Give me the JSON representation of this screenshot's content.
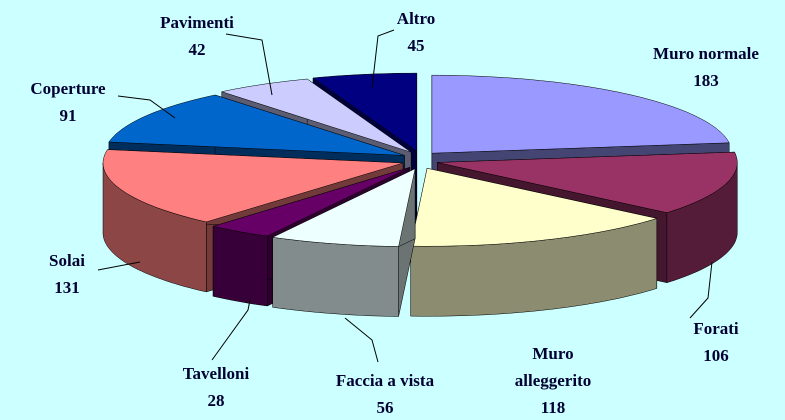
{
  "chart_data": {
    "type": "pie3d",
    "categories": [
      "Muro normale",
      "Forati",
      "Muro alleggerito",
      "Faccia a vista",
      "Tavelloni",
      "Solai",
      "Coperture",
      "Pavimenti",
      "Altro"
    ],
    "values": [
      183,
      106,
      118,
      56,
      28,
      131,
      91,
      42,
      45
    ],
    "colors": [
      "#9999ff",
      "#993366",
      "#ffffcc",
      "#eeffff",
      "#660066",
      "#ff8080",
      "#0066cc",
      "#ccccff",
      "#000080"
    ]
  }
}
